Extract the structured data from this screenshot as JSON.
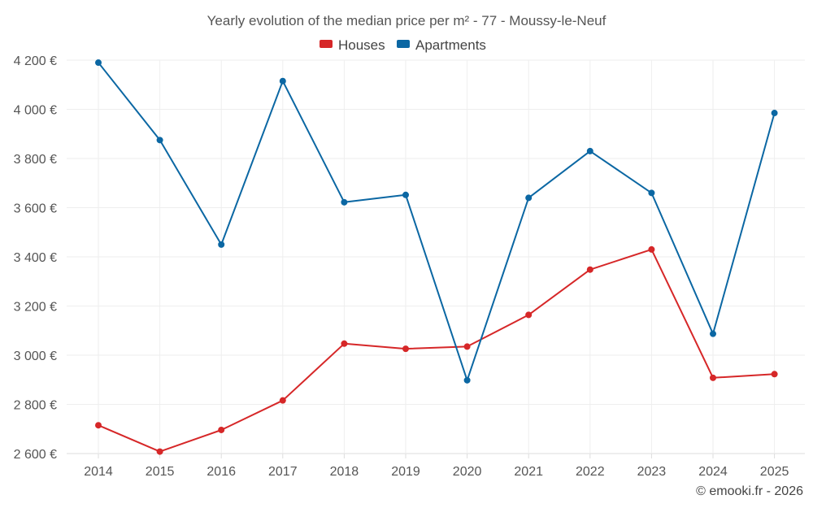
{
  "chart_data": {
    "type": "line",
    "title": "Yearly evolution of the median price per m² - 77 - Moussy-le-Neuf",
    "categories": [
      "2014",
      "2015",
      "2016",
      "2017",
      "2018",
      "2019",
      "2020",
      "2021",
      "2022",
      "2023",
      "2024",
      "2025"
    ],
    "series": [
      {
        "name": "Houses",
        "color": "#d62728",
        "values": [
          2715,
          2608,
          2696,
          2816,
          3047,
          3026,
          3035,
          3164,
          3348,
          3430,
          2908,
          2923
        ]
      },
      {
        "name": "Apartments",
        "color": "#0b67a3",
        "values": [
          4190,
          3875,
          3450,
          4115,
          3622,
          3652,
          2898,
          3640,
          3830,
          3660,
          3087,
          3985
        ]
      }
    ],
    "y_ticks": [
      2600,
      2800,
      3000,
      3200,
      3400,
      3600,
      3800,
      4000,
      4200
    ],
    "y_tick_labels": [
      "2 600 €",
      "2 800 €",
      "3 000 €",
      "3 200 €",
      "3 400 €",
      "3 600 €",
      "3 800 €",
      "4 000 €",
      "4 200 €"
    ],
    "ylim": [
      2600,
      4200
    ],
    "xlabel": "",
    "ylabel": "",
    "grid": true,
    "legend_position": "top-center"
  },
  "credit": "© emooki.fr - 2026"
}
